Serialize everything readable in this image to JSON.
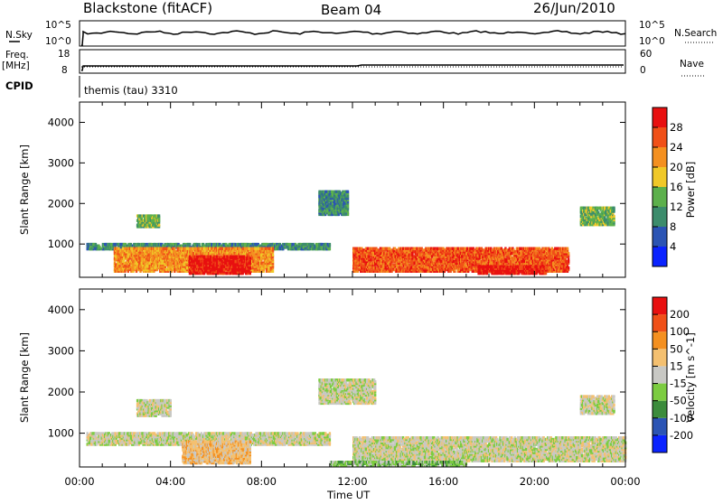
{
  "header": {
    "title_left": "Blackstone (fitACF)",
    "title_center": "Beam 04",
    "title_right": "26/Jun/2010"
  },
  "strip_labels": {
    "nsky": "N.Sky",
    "nsky_tick_hi": "10^5",
    "nsky_tick_lo": "10^0",
    "nsearch": "N.Search",
    "nsearch_tick_hi": "10^5",
    "nsearch_tick_lo": "10^0",
    "freq": "Freq.",
    "freq_unit": "[MHz]",
    "freq_tick_hi": "18",
    "freq_tick_lo": "8",
    "nave": "Nave",
    "nave_tick_hi": "60",
    "nave_tick_lo": "0",
    "cpid": "CPID",
    "cpid_value": "themis (tau) 3310"
  },
  "colors": {
    "power": [
      "#0a23ff",
      "#2b54b4",
      "#3c8c6c",
      "#5cb04c",
      "#f0c828",
      "#f49020",
      "#f05018",
      "#e81010"
    ],
    "velocity": [
      "#e81010",
      "#f05018",
      "#f49020",
      "#f4c070",
      "#c8c8c4",
      "#7ccc40",
      "#3c8c3c",
      "#2b54b4",
      "#0a23ff"
    ]
  },
  "chart_data": [
    {
      "type": "heatmap",
      "title": "Power",
      "ylabel": "Slant Range [km]",
      "xlabel": "",
      "ylim": [
        180,
        4500
      ],
      "yticks": [
        "1000",
        "2000",
        "3000",
        "4000"
      ],
      "xticks": [
        "00:00",
        "04:00",
        "08:00",
        "12:00",
        "16:00",
        "20:00",
        "00:00"
      ],
      "colorbar": {
        "label": "Power [dB]",
        "ticks": [
          "4",
          "8",
          "12",
          "16",
          "20",
          "24",
          "28"
        ]
      },
      "regions": [
        {
          "t": [
            0.3,
            11.0
          ],
          "r": [
            850,
            1000
          ],
          "level": 2
        },
        {
          "t": [
            1.5,
            8.5
          ],
          "r": [
            300,
            900
          ],
          "level": 5
        },
        {
          "t": [
            2.5,
            3.5
          ],
          "r": [
            1400,
            1700
          ],
          "level": 3
        },
        {
          "t": [
            4.8,
            7.5
          ],
          "r": [
            250,
            700
          ],
          "level": 7
        },
        {
          "t": [
            12.0,
            21.5
          ],
          "r": [
            300,
            900
          ],
          "level": 6
        },
        {
          "t": [
            17.5,
            20.5
          ],
          "r": [
            250,
            450
          ],
          "level": 7
        },
        {
          "t": [
            22.0,
            23.5
          ],
          "r": [
            1450,
            1900
          ],
          "level": 3
        },
        {
          "t": [
            10.5,
            11.8
          ],
          "r": [
            1700,
            2300
          ],
          "level": 2
        }
      ]
    },
    {
      "type": "heatmap",
      "title": "Velocity",
      "ylabel": "Slant Range [km]",
      "xlabel": "Time UT",
      "ylim": [
        180,
        4500
      ],
      "yticks": [
        "1000",
        "2000",
        "3000",
        "4000"
      ],
      "xticks": [
        "00:00",
        "04:00",
        "08:00",
        "12:00",
        "16:00",
        "20:00",
        "00:00"
      ],
      "colorbar": {
        "label": "Velocity [m s^-1]",
        "ticks": [
          "200",
          "100",
          "50",
          "15",
          "-15",
          "-50",
          "-100",
          "-200"
        ]
      },
      "regions": [
        {
          "t": [
            0.3,
            11.0
          ],
          "r": [
            700,
            1000
          ],
          "level": 4
        },
        {
          "t": [
            12.0,
            24.0
          ],
          "r": [
            300,
            900
          ],
          "level": 4
        },
        {
          "t": [
            4.5,
            7.5
          ],
          "r": [
            250,
            800
          ],
          "level": 3
        },
        {
          "t": [
            11.0,
            17.0
          ],
          "r": [
            200,
            300
          ],
          "level": 5
        },
        {
          "t": [
            2.5,
            4.0
          ],
          "r": [
            1400,
            1800
          ],
          "level": 4
        },
        {
          "t": [
            22.0,
            23.5
          ],
          "r": [
            1450,
            1900
          ],
          "level": 4
        },
        {
          "t": [
            10.5,
            13.0
          ],
          "r": [
            1700,
            2300
          ],
          "level": 4
        }
      ]
    }
  ]
}
